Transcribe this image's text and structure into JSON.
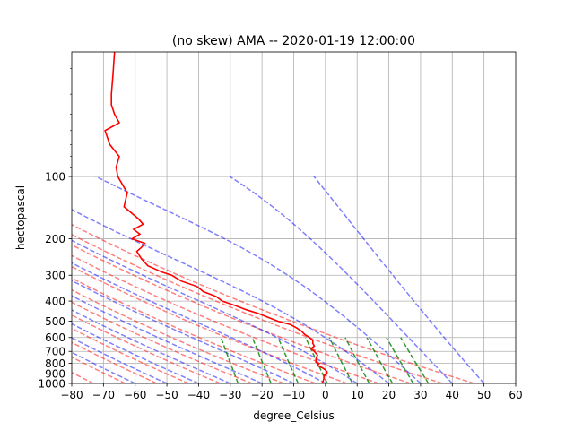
{
  "chart_data": {
    "type": "line",
    "title": "(no skew) AMA -- 2020-01-19 12:00:00",
    "xlabel": "degree_Celsius",
    "ylabel": "hectopascal",
    "xlim": [
      -80,
      60
    ],
    "ylim": [
      1000,
      25
    ],
    "yscale": "log",
    "grid": true,
    "xticks": [
      -80,
      -70,
      -60,
      -50,
      -40,
      -30,
      -20,
      -10,
      0,
      10,
      20,
      30,
      40,
      50,
      60
    ],
    "yticks": [
      100,
      200,
      300,
      400,
      500,
      600,
      700,
      800,
      900,
      1000
    ],
    "temperature": {
      "color": "#ff0000",
      "p": [
        25,
        32,
        40,
        45,
        50,
        55,
        60,
        70,
        80,
        90,
        100,
        120,
        140,
        160,
        170,
        180,
        190,
        200,
        210,
        220,
        230,
        250,
        270,
        290,
        300,
        320,
        340,
        360,
        380,
        400,
        420,
        440,
        460,
        480,
        500,
        520,
        540,
        560,
        580,
        600,
        620,
        640,
        660,
        680,
        700,
        730,
        760,
        790,
        800,
        820,
        840,
        860,
        880,
        900,
        920,
        950,
        1000
      ],
      "t": [
        -66.5,
        -67,
        -67.5,
        -67.5,
        -66.5,
        -65,
        -69.5,
        -68,
        -65,
        -66,
        -65.5,
        -62.5,
        -63.5,
        -59,
        -57.5,
        -60.5,
        -58.5,
        -61,
        -57,
        -58,
        -59.5,
        -58,
        -56,
        -51.5,
        -48.5,
        -45.5,
        -40.5,
        -38.5,
        -34.5,
        -32.5,
        -28.5,
        -25,
        -21,
        -18,
        -15,
        -11,
        -9,
        -7.5,
        -6.5,
        -5,
        -4,
        -4,
        -3.5,
        -4.5,
        -3.5,
        -2.5,
        -3,
        -3,
        -2,
        -2.5,
        -1,
        0,
        0.5,
        0.5,
        -0.5,
        -0.5,
        -1
      ]
    },
    "dry_adiabats": {
      "color": "#ff0000",
      "theta_k": [
        200,
        210,
        220,
        230,
        240,
        250,
        260,
        270,
        280,
        290,
        300,
        310,
        320
      ]
    },
    "moist_adiabats": {
      "color": "#0000ff",
      "t0_c": [
        -60,
        -50,
        -40,
        -30,
        -20,
        -10,
        0,
        10,
        20,
        30,
        40,
        50
      ],
      "p_top": 100
    },
    "mixing_lines": {
      "color": "#008000",
      "w_gkg": [
        0.4,
        1,
        2,
        4,
        7,
        10,
        16,
        24,
        32
      ],
      "p_top": 600
    }
  }
}
